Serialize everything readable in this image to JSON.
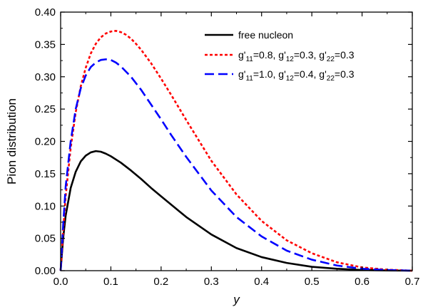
{
  "chart_data": {
    "type": "line",
    "xlabel": "y",
    "ylabel": "Pion distribution",
    "xlim": [
      0.0,
      0.7
    ],
    "ylim": [
      0.0,
      0.4
    ],
    "xticks": [
      0.0,
      0.1,
      0.2,
      0.3,
      0.4,
      0.5,
      0.6,
      0.7
    ],
    "yticks": [
      0.0,
      0.05,
      0.1,
      0.15,
      0.2,
      0.25,
      0.3,
      0.35,
      0.4
    ],
    "xtick_labels": [
      "0.0",
      "0.1",
      "0.2",
      "0.3",
      "0.4",
      "0.5",
      "0.6",
      "0.7"
    ],
    "ytick_labels": [
      "0.00",
      "0.05",
      "0.10",
      "0.15",
      "0.20",
      "0.25",
      "0.30",
      "0.35",
      "0.40"
    ],
    "grid": false,
    "legend_position": "top-right",
    "series": [
      {
        "name": "free nucleon",
        "legend_parts": [
          {
            "t": "free nucleon"
          }
        ],
        "color": "#000000",
        "style": "solid",
        "x": [
          0.0,
          0.005,
          0.01,
          0.02,
          0.03,
          0.04,
          0.05,
          0.06,
          0.07,
          0.08,
          0.09,
          0.1,
          0.12,
          0.14,
          0.16,
          0.18,
          0.2,
          0.25,
          0.3,
          0.35,
          0.4,
          0.45,
          0.5,
          0.55,
          0.6,
          0.65,
          0.7
        ],
        "y": [
          0.0,
          0.05,
          0.085,
          0.128,
          0.153,
          0.169,
          0.178,
          0.183,
          0.185,
          0.184,
          0.181,
          0.177,
          0.167,
          0.155,
          0.142,
          0.128,
          0.115,
          0.083,
          0.056,
          0.035,
          0.021,
          0.012,
          0.006,
          0.003,
          0.001,
          0.0003,
          0.0
        ]
      },
      {
        "name": "g'11=0.8, g'12=0.3, g'22=0.3",
        "legend_parts": [
          {
            "t": "g'"
          },
          {
            "t": "11",
            "sub": true
          },
          {
            "t": "=0.8, g'"
          },
          {
            "t": "12",
            "sub": true
          },
          {
            "t": "=0.3, g'"
          },
          {
            "t": "22",
            "sub": true
          },
          {
            "t": "=0.3"
          }
        ],
        "color": "#ff0000",
        "style": "dotted",
        "x": [
          0.0,
          0.005,
          0.01,
          0.02,
          0.03,
          0.04,
          0.05,
          0.06,
          0.07,
          0.08,
          0.09,
          0.1,
          0.11,
          0.12,
          0.13,
          0.14,
          0.15,
          0.16,
          0.18,
          0.2,
          0.22,
          0.25,
          0.3,
          0.35,
          0.4,
          0.45,
          0.5,
          0.55,
          0.6,
          0.65,
          0.7
        ],
        "y": [
          0.0,
          0.06,
          0.115,
          0.19,
          0.245,
          0.285,
          0.314,
          0.336,
          0.351,
          0.361,
          0.367,
          0.37,
          0.371,
          0.369,
          0.365,
          0.359,
          0.351,
          0.342,
          0.321,
          0.297,
          0.272,
          0.233,
          0.17,
          0.118,
          0.077,
          0.047,
          0.027,
          0.013,
          0.005,
          0.0015,
          0.0
        ]
      },
      {
        "name": "g'11=1.0, g'12=0.4, g'22=0.3",
        "legend_parts": [
          {
            "t": "g'"
          },
          {
            "t": "11",
            "sub": true
          },
          {
            "t": "=1.0, g'"
          },
          {
            "t": "12",
            "sub": true
          },
          {
            "t": "=0.4, g'"
          },
          {
            "t": "22",
            "sub": true
          },
          {
            "t": "=0.3"
          }
        ],
        "color": "#0000ff",
        "style": "dashed",
        "x": [
          0.0,
          0.005,
          0.01,
          0.02,
          0.03,
          0.04,
          0.05,
          0.06,
          0.07,
          0.08,
          0.09,
          0.1,
          0.11,
          0.12,
          0.13,
          0.14,
          0.15,
          0.16,
          0.18,
          0.2,
          0.22,
          0.25,
          0.3,
          0.35,
          0.4,
          0.45,
          0.5,
          0.55,
          0.6,
          0.65,
          0.7
        ],
        "y": [
          0.0,
          0.07,
          0.13,
          0.2,
          0.25,
          0.282,
          0.302,
          0.315,
          0.322,
          0.326,
          0.327,
          0.326,
          0.322,
          0.316,
          0.308,
          0.3,
          0.29,
          0.28,
          0.257,
          0.234,
          0.21,
          0.176,
          0.124,
          0.083,
          0.053,
          0.031,
          0.017,
          0.008,
          0.003,
          0.001,
          0.0
        ]
      }
    ]
  }
}
